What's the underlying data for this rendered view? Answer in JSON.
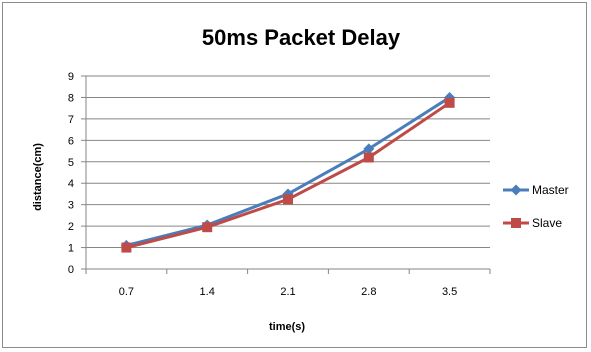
{
  "chart_data": {
    "type": "line",
    "title": "50ms Packet Delay",
    "xlabel": "time(s)",
    "ylabel": "distance(cm)",
    "categories": [
      "0.7",
      "1.4",
      "2.1",
      "2.8",
      "3.5"
    ],
    "ylim": [
      0,
      9
    ],
    "yticks": [
      0,
      1,
      2,
      3,
      4,
      5,
      6,
      7,
      8,
      9
    ],
    "grid": true,
    "legend_position": "right",
    "series": [
      {
        "name": "Master",
        "values": [
          1.1,
          2.05,
          3.5,
          5.6,
          8.0
        ],
        "color": "#4a7ebb",
        "marker": "diamond"
      },
      {
        "name": "Slave",
        "values": [
          1.0,
          1.95,
          3.25,
          5.2,
          7.75
        ],
        "color": "#be4b48",
        "marker": "square"
      }
    ]
  }
}
